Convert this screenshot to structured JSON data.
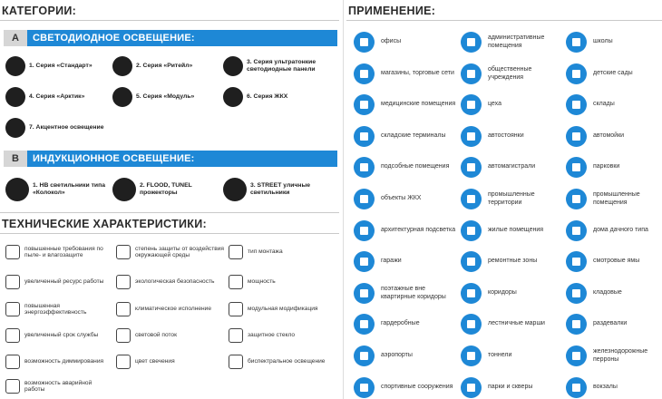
{
  "left": {
    "categories_title": "КАТЕГОРИИ:",
    "led": {
      "letter": "A",
      "title": "СВЕТОДИОДНОЕ ОСВЕЩЕНИЕ:"
    },
    "led_products": [
      {
        "label": "1. Серия «Стандарт»",
        "icon": "bulb-icon"
      },
      {
        "label": "2. Серия «Ритейл»",
        "icon": "pendant-lamp-icon"
      },
      {
        "label": "3. Серия ультратонкие светодиодные панели",
        "icon": "led-panel-icon"
      },
      {
        "label": "4. Серия «Арктик»",
        "icon": "dome-lamp-icon"
      },
      {
        "label": "5. Серия «Модуль»",
        "icon": "module-lamp-icon"
      },
      {
        "label": "6. Серия ЖКХ",
        "icon": "ceiling-lamp-icon"
      },
      {
        "label": "7. Акцентное освещение",
        "icon": "spotlight-rail-icon"
      }
    ],
    "induction": {
      "letter": "B",
      "title": "ИНДУКЦИОННОЕ ОСВЕЩЕНИЕ:"
    },
    "induction_products": [
      {
        "label": "1. HB светильники типа «Колокол»",
        "icon": "bell-lamp-icon"
      },
      {
        "label": "2. FLOOD, TUNEL прожекторы",
        "icon": "floodlight-icon"
      },
      {
        "label": "3. STREET уличные светильники",
        "icon": "street-light-icon"
      }
    ],
    "specs_title": "ТЕХНИЧЕСКИЕ ХАРАКТЕРИСТИКИ:",
    "specs": [
      {
        "label": "повышенные требования по пыле- и влагозащите",
        "icon": "drop-icon"
      },
      {
        "label": "степень защиты от воздействия окружающей среды",
        "icon": "shield-icon"
      },
      {
        "label": "тип монтажа",
        "icon": "mount-icon"
      },
      {
        "label": "увеличенный ресурс работы",
        "icon": "battery-icon"
      },
      {
        "label": "экологическая безопасность",
        "icon": "leaf-icon"
      },
      {
        "label": "мощность",
        "icon": "plug-icon"
      },
      {
        "label": "повышенная энергоэффективность",
        "icon": "lightning-icon"
      },
      {
        "label": "климатическое исполнение",
        "icon": "snowflake-icon"
      },
      {
        "label": "модульная модификация",
        "icon": "atom-icon"
      },
      {
        "label": "увеличенный срок службы",
        "icon": "clock-icon"
      },
      {
        "label": "световой поток",
        "icon": "light-flow-icon"
      },
      {
        "label": "защитное стекло",
        "icon": "glass-icon"
      },
      {
        "label": "возможность диммирования",
        "icon": "dimmer-icon"
      },
      {
        "label": "цвет свечения",
        "icon": "color-icon"
      },
      {
        "label": "биспектральное освещение",
        "icon": "bispectral-icon"
      },
      {
        "label": "возможность аварийной работы",
        "icon": "emergency-icon"
      }
    ]
  },
  "right": {
    "title": "ПРИМЕНЕНИЕ:",
    "items": [
      {
        "label": "офисы",
        "icon": "office-chair-icon"
      },
      {
        "label": "административные помещения",
        "icon": "government-building-icon"
      },
      {
        "label": "школы",
        "icon": "graduation-cap-icon"
      },
      {
        "label": "магазины, торговые сети",
        "icon": "shopping-cart-icon"
      },
      {
        "label": "общественные учреждения",
        "icon": "public-building-icon"
      },
      {
        "label": "детские сады",
        "icon": "child-icon"
      },
      {
        "label": "медицинские помещения",
        "icon": "medical-kit-icon"
      },
      {
        "label": "цеха",
        "icon": "factory-icon"
      },
      {
        "label": "склады",
        "icon": "warehouse-icon"
      },
      {
        "label": "складские терминалы",
        "icon": "box-icon"
      },
      {
        "label": "автостоянки",
        "icon": "car-icon"
      },
      {
        "label": "автомойки",
        "icon": "car-wash-icon"
      },
      {
        "label": "подсобные помещения",
        "icon": "storage-box-icon"
      },
      {
        "label": "автомагистрали",
        "icon": "highway-icon"
      },
      {
        "label": "парковки",
        "icon": "parking-icon"
      },
      {
        "label": "объекты ЖКХ",
        "icon": "house-gear-icon"
      },
      {
        "label": "промышленные территории",
        "icon": "industrial-icon"
      },
      {
        "label": "промышленные помещения",
        "icon": "plant-icon"
      },
      {
        "label": "архитектурная подсветка",
        "icon": "sun-icon"
      },
      {
        "label": "жилые помещения",
        "icon": "apartment-icon"
      },
      {
        "label": "дома дачного типа",
        "icon": "cottage-icon"
      },
      {
        "label": "гаражи",
        "icon": "garage-icon"
      },
      {
        "label": "ремонтные зоны",
        "icon": "tools-icon"
      },
      {
        "label": "смотровые ямы",
        "icon": "pit-icon"
      },
      {
        "label": "поэтажные вне квартирные коридоры",
        "icon": "floor-corridor-icon"
      },
      {
        "label": "коридоры",
        "icon": "corridor-icon"
      },
      {
        "label": "кладовые",
        "icon": "pantry-icon"
      },
      {
        "label": "гардеробные",
        "icon": "hanger-icon"
      },
      {
        "label": "лестничные марши",
        "icon": "stairs-icon"
      },
      {
        "label": "раздевалки",
        "icon": "locker-icon"
      },
      {
        "label": "аэропорты",
        "icon": "airplane-icon"
      },
      {
        "label": "тоннели",
        "icon": "tunnel-icon"
      },
      {
        "label": "железнодорожные перроны",
        "icon": "train-icon"
      },
      {
        "label": "спортивные сооружения",
        "icon": "stadium-icon"
      },
      {
        "label": "парки и скверы",
        "icon": "tree-icon"
      },
      {
        "label": "вокзалы",
        "icon": "station-icon"
      }
    ]
  },
  "colors": {
    "accent": "#1e88d6",
    "dark": "#1f1f1f"
  }
}
